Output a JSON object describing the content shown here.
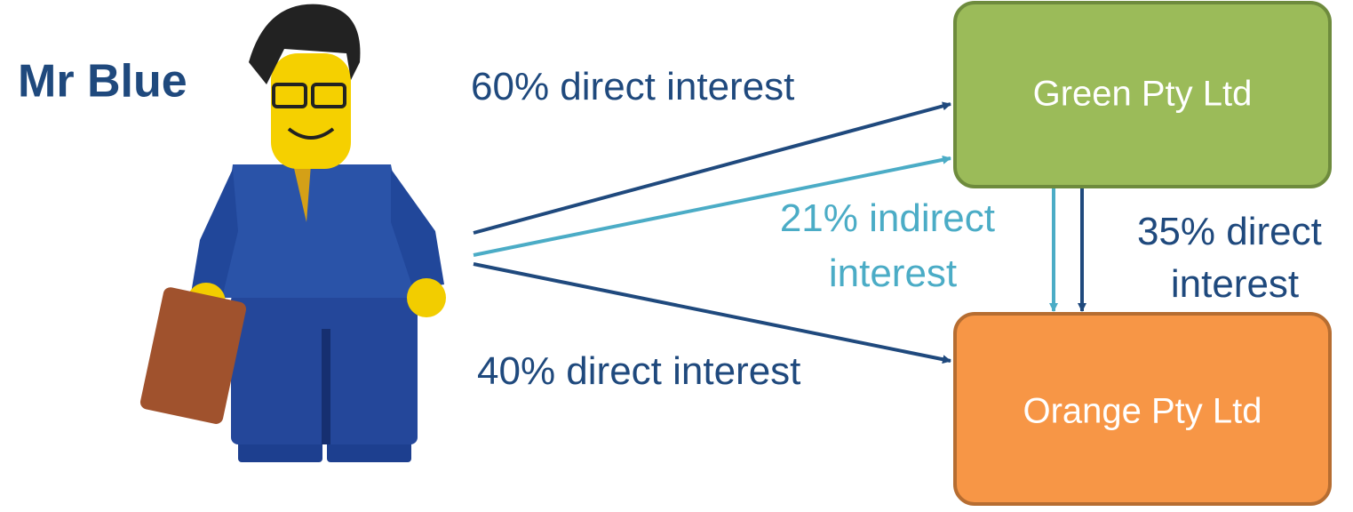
{
  "person": {
    "label": "Mr Blue"
  },
  "nodes": [
    {
      "label": "Green Pty Ltd"
    },
    {
      "label": "Orange Pty Ltd"
    }
  ],
  "edges": [
    {
      "lines": [
        "60% direct interest"
      ]
    },
    {
      "lines": [
        "21% indirect",
        "interest"
      ]
    },
    {
      "lines": [
        "35% direct",
        "interest"
      ]
    },
    {
      "lines": [
        "40% direct interest"
      ]
    }
  ]
}
